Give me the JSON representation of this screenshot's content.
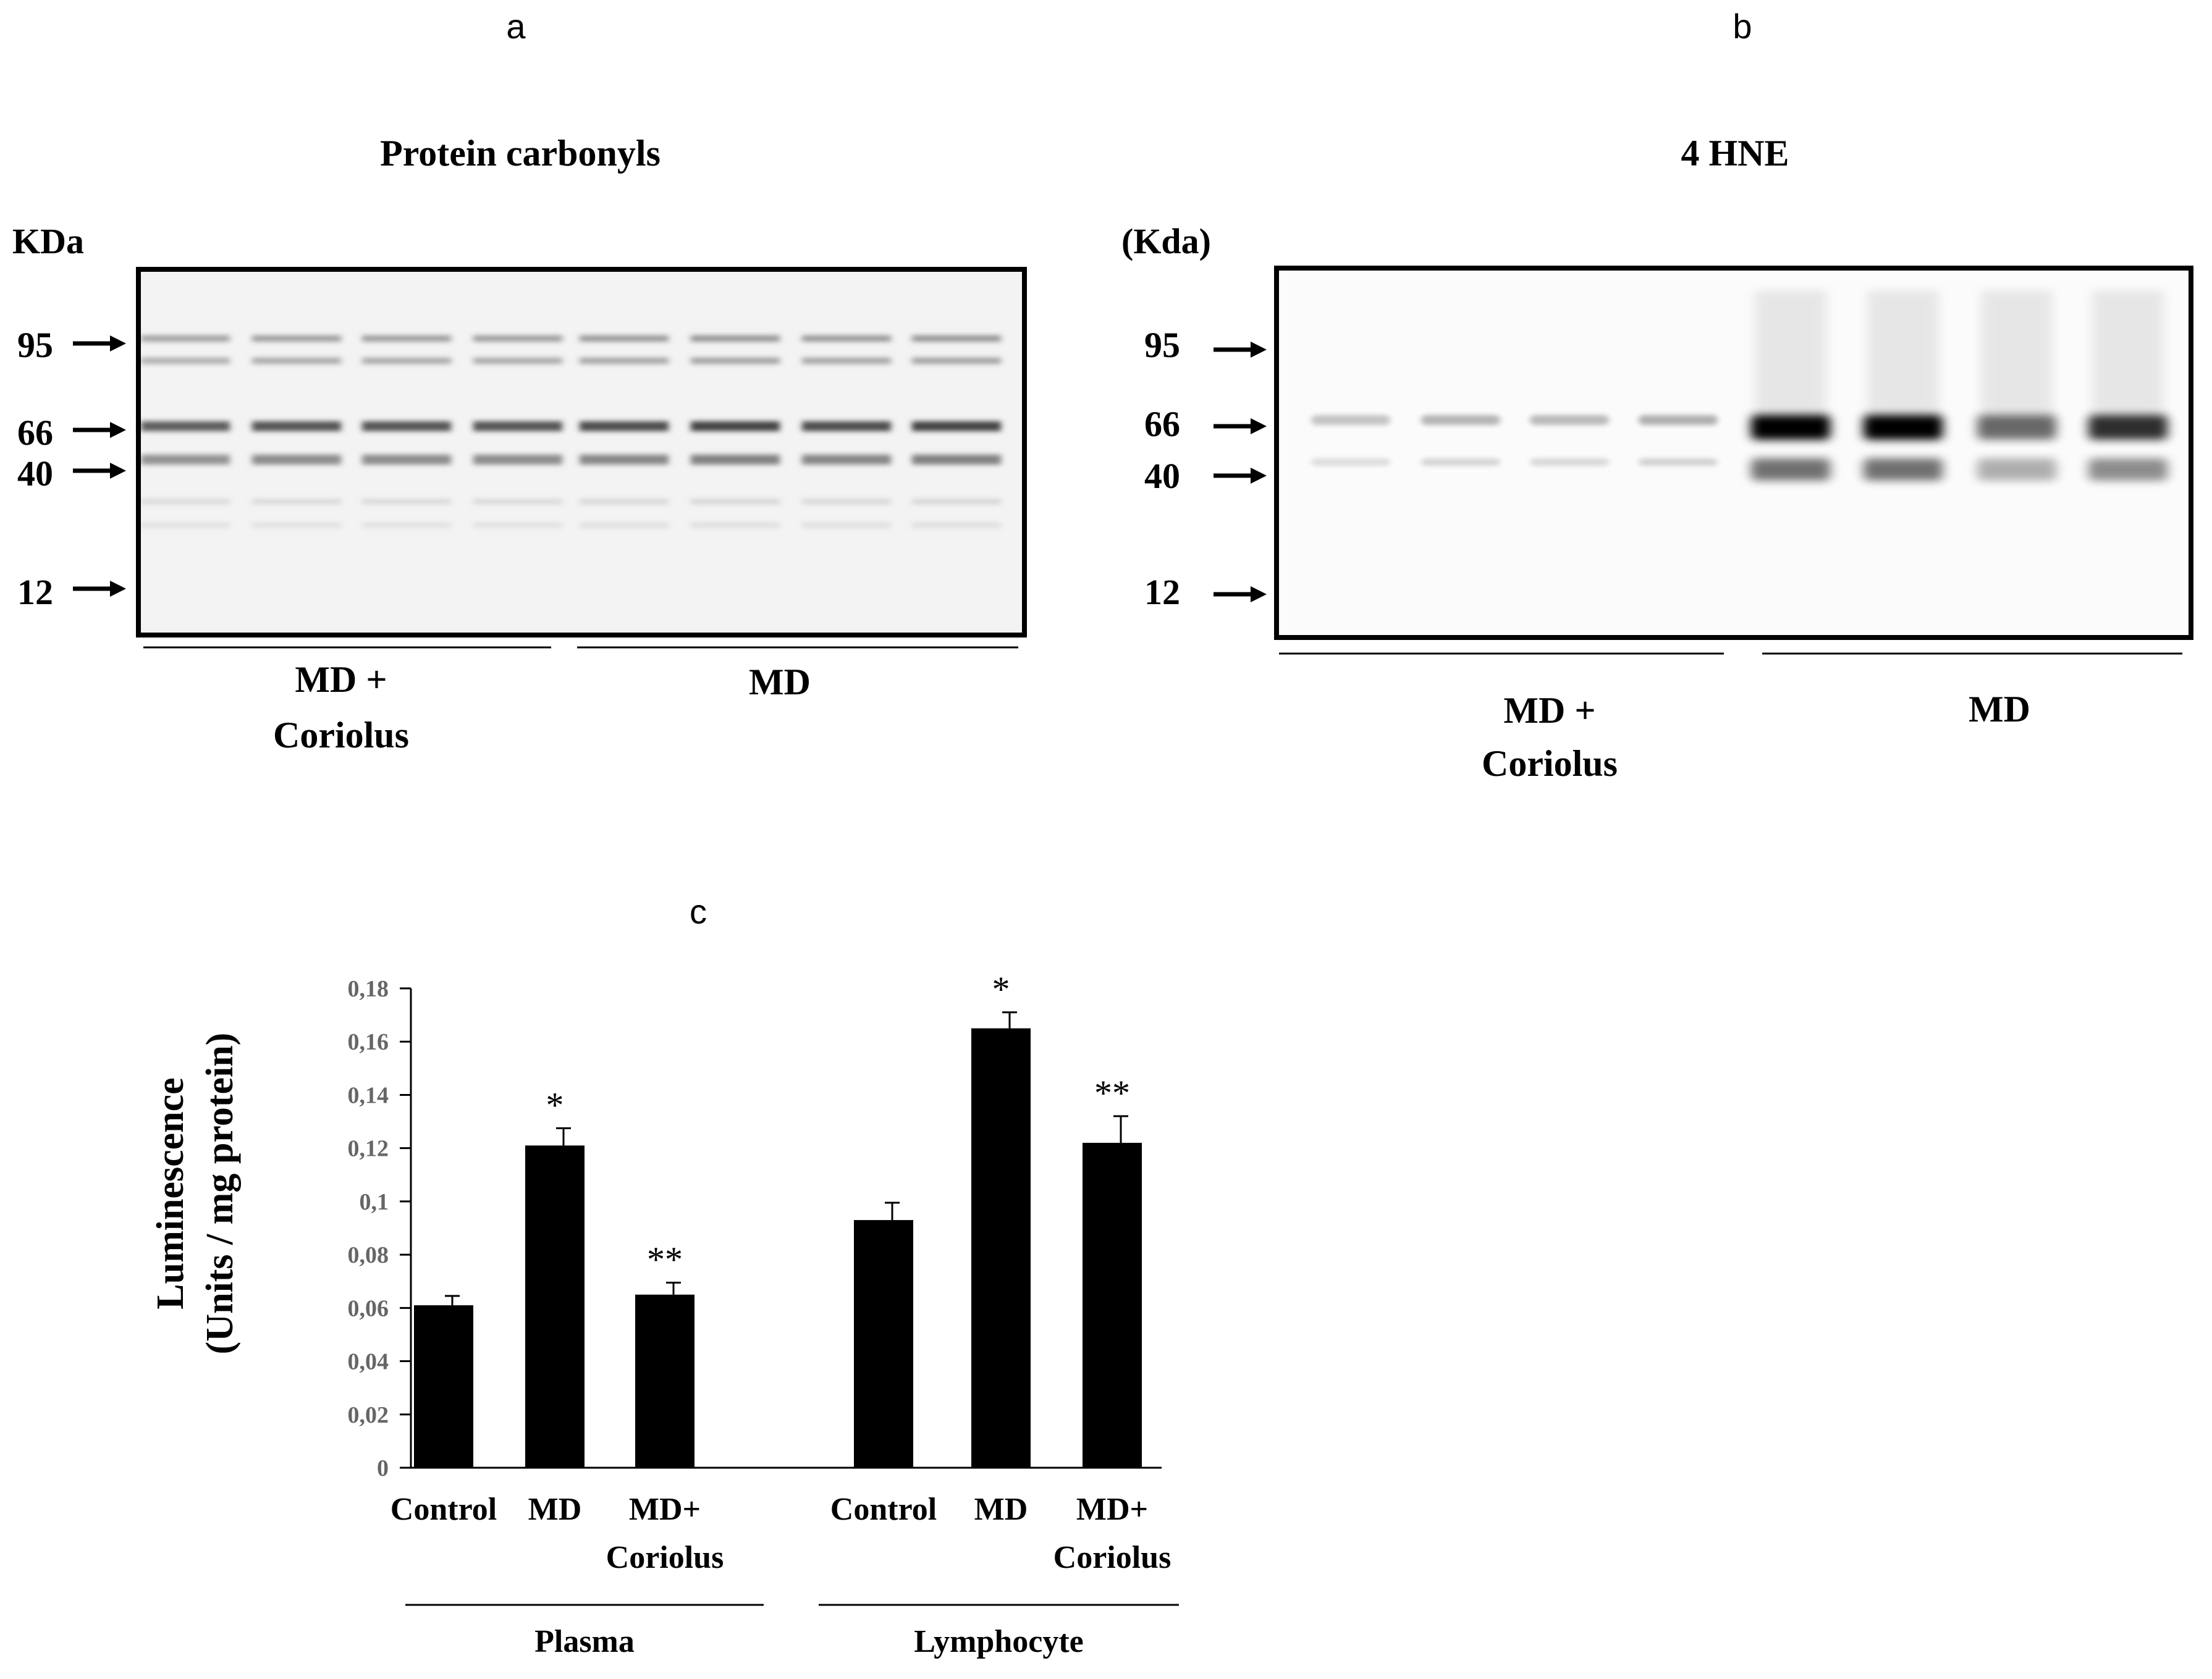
{
  "panels": [
    {
      "letter": "a",
      "title": "Protein carbonyls",
      "unit": "KDa",
      "markers": [
        "95",
        "66",
        "40",
        "12"
      ],
      "groups": [
        {
          "label_line1": "MD +",
          "label_line2": "Coriolus"
        },
        {
          "label_line1": "MD",
          "label_line2": ""
        }
      ]
    },
    {
      "letter": "b",
      "title": "4 HNE",
      "unit": "(Kda)",
      "markers": [
        "95",
        "66",
        "40",
        "12"
      ],
      "groups": [
        {
          "label_line1": "MD +",
          "label_line2": "Coriolus"
        },
        {
          "label_line1": "MD",
          "label_line2": ""
        }
      ]
    }
  ],
  "chart_data": {
    "type": "bar",
    "panel_letter": "c",
    "ylabel_line1": "Luminescence",
    "ylabel_line2": "(Units / mg protein)",
    "ylim": [
      0,
      0.18
    ],
    "yticks": [
      "0",
      "0,02",
      "0,04",
      "0,06",
      "0,08",
      "0,1",
      "0,12",
      "0,14",
      "0,16",
      "0,18"
    ],
    "groups": [
      {
        "name": "Plasma",
        "categories": [
          {
            "line1": "Control",
            "line2": ""
          },
          {
            "line1": "MD",
            "line2": ""
          },
          {
            "line1": "MD+",
            "line2": "Coriolus"
          }
        ],
        "values": [
          0.061,
          0.121,
          0.065
        ],
        "errors": [
          0.0035,
          0.0065,
          0.0045
        ],
        "significance": [
          "",
          "*",
          "**"
        ]
      },
      {
        "name": "Lymphocyte",
        "categories": [
          {
            "line1": "Control",
            "line2": ""
          },
          {
            "line1": "MD",
            "line2": ""
          },
          {
            "line1": "MD+",
            "line2": "Coriolus"
          }
        ],
        "values": [
          0.093,
          0.165,
          0.122
        ],
        "errors": [
          0.0065,
          0.006,
          0.01
        ],
        "significance": [
          "",
          "*",
          "**"
        ]
      }
    ],
    "bar_color": "#000000"
  }
}
